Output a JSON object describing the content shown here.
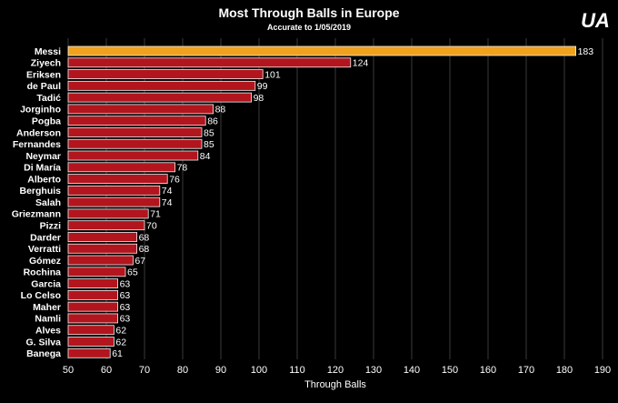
{
  "logo_text": "UA",
  "chart_data": {
    "type": "bar",
    "orientation": "horizontal",
    "title": "Most Through Balls in Europe",
    "subtitle": "Accurate to 1/05/2019",
    "xlabel": "Through Balls",
    "xlim": [
      50,
      190
    ],
    "xticks": [
      50,
      60,
      70,
      80,
      90,
      100,
      110,
      120,
      130,
      140,
      150,
      160,
      170,
      180,
      190
    ],
    "grid": true,
    "colors": {
      "highlight": "#f0a21e",
      "default": "#b2151d"
    },
    "highlight": "Messi",
    "categories": [
      "Messi",
      "Ziyech",
      "Eriksen",
      "de Paul",
      "Tadić",
      "Jorginho",
      "Pogba",
      "Anderson",
      "Fernandes",
      "Neymar",
      "Di María",
      "Alberto",
      "Berghuis",
      "Salah",
      "Griezmann",
      "Pizzi",
      "Darder",
      "Verratti",
      "Gómez",
      "Rochina",
      "Garcia",
      "Lo Celso",
      "Maher",
      "Namli",
      "Alves",
      "G. Silva",
      "Banega"
    ],
    "values": [
      183,
      124,
      101,
      99,
      98,
      88,
      86,
      85,
      85,
      84,
      78,
      76,
      74,
      74,
      71,
      70,
      68,
      68,
      67,
      65,
      63,
      63,
      63,
      63,
      62,
      62,
      61
    ]
  }
}
